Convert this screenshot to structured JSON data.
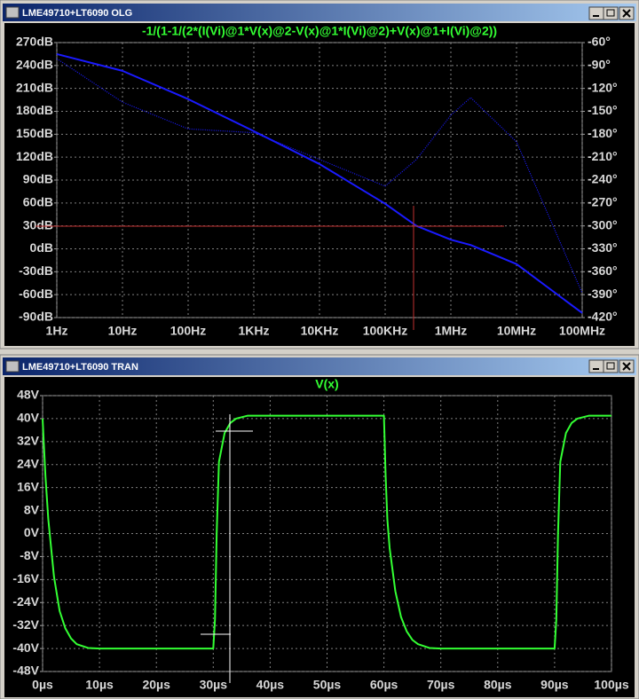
{
  "windows": [
    {
      "title": "LME49710+LT6090 OLG"
    },
    {
      "title": "LME49710+LT6090 TRAN"
    }
  ],
  "chart_data": [
    {
      "type": "line",
      "title": "-1/(1-1/(2*(I(Vi)@1*V(x)@2-V(x)@1*I(Vi)@2)+V(x)@1+I(Vi)@2))",
      "xscale": "log",
      "grid": true,
      "x": [
        1,
        10,
        100,
        1000,
        10000,
        100000,
        300000,
        1000000,
        2000000,
        10000000,
        100000000
      ],
      "series": [
        {
          "color": "#1a1aff",
          "style": "solid",
          "values": [
            255,
            233,
            196,
            154,
            111,
            59,
            30,
            12,
            5,
            -20,
            -84
          ]
        },
        {
          "color": "#1a1aff",
          "style": "dotted",
          "axis": "y2",
          "values": [
            -81,
            -138,
            -173,
            -178,
            -213,
            -248,
            -213,
            -155,
            -132,
            -190,
            -388
          ]
        }
      ],
      "xlim": [
        1,
        100000000
      ],
      "xticks": [
        {
          "value": 1,
          "label": "1Hz"
        },
        {
          "value": 10,
          "label": "10Hz"
        },
        {
          "value": 100,
          "label": "100Hz"
        },
        {
          "value": 1000,
          "label": "1KHz"
        },
        {
          "value": 10000,
          "label": "10KHz"
        },
        {
          "value": 100000,
          "label": "100KHz"
        },
        {
          "value": 1000000,
          "label": "1MHz"
        },
        {
          "value": 10000000,
          "label": "10MHz"
        },
        {
          "value": 100000000,
          "label": "100MHz"
        }
      ],
      "ylim": [
        -90,
        270
      ],
      "yticks": [
        {
          "value": 270,
          "label": "270dB"
        },
        {
          "value": 240,
          "label": "240dB"
        },
        {
          "value": 210,
          "label": "210dB"
        },
        {
          "value": 180,
          "label": "180dB"
        },
        {
          "value": 150,
          "label": "150dB"
        },
        {
          "value": 120,
          "label": "120dB"
        },
        {
          "value": 90,
          "label": "90dB"
        },
        {
          "value": 60,
          "label": "60dB"
        },
        {
          "value": 30,
          "label": "30dB"
        },
        {
          "value": 0,
          "label": "0dB"
        },
        {
          "value": -30,
          "label": "-30dB"
        },
        {
          "value": -60,
          "label": "-60dB"
        },
        {
          "value": -90,
          "label": "-90dB"
        }
      ],
      "y2lim": [
        -420,
        -60
      ],
      "y2ticks": [
        {
          "value": -60,
          "label": "-60°"
        },
        {
          "value": -90,
          "label": "-90°"
        },
        {
          "value": -120,
          "label": "-120°"
        },
        {
          "value": -150,
          "label": "-150°"
        },
        {
          "value": -180,
          "label": "-180°"
        },
        {
          "value": -210,
          "label": "-210°"
        },
        {
          "value": -240,
          "label": "-240°"
        },
        {
          "value": -270,
          "label": "-270°"
        },
        {
          "value": -300,
          "label": "-300°"
        },
        {
          "value": -330,
          "label": "-330°"
        },
        {
          "value": -360,
          "label": "-360°"
        },
        {
          "value": -390,
          "label": "-390°"
        },
        {
          "value": -420,
          "label": "-420°"
        }
      ]
    },
    {
      "type": "line",
      "xscale": "linear",
      "grid": true,
      "x": [
        0,
        0.5,
        1,
        2,
        3,
        4,
        5,
        6,
        8,
        10,
        30,
        30.3,
        30.6,
        31,
        32,
        33,
        34,
        36,
        60,
        60.3,
        60.6,
        61,
        62,
        63,
        64,
        65,
        66,
        68,
        70,
        90,
        90.3,
        90.6,
        91,
        92,
        93,
        94,
        96,
        100
      ],
      "series": [
        {
          "name": "V(x)",
          "color": "#33ff33",
          "style": "solid",
          "values": [
            40,
            20,
            5,
            -15,
            -27,
            -33,
            -36.5,
            -38.5,
            -39.8,
            -40,
            -40,
            -30,
            0,
            25,
            35,
            38.5,
            40,
            41,
            41,
            20,
            5,
            -5,
            -20,
            -29,
            -34,
            -37,
            -38.5,
            -39.8,
            -40,
            -40,
            -30,
            0,
            25,
            35,
            38.5,
            40,
            41,
            41
          ]
        }
      ],
      "xlim": [
        0,
        100
      ],
      "xticks": [
        {
          "value": 0,
          "label": "0µs"
        },
        {
          "value": 10,
          "label": "10µs"
        },
        {
          "value": 20,
          "label": "20µs"
        },
        {
          "value": 30,
          "label": "30µs"
        },
        {
          "value": 40,
          "label": "40µs"
        },
        {
          "value": 50,
          "label": "50µs"
        },
        {
          "value": 60,
          "label": "60µs"
        },
        {
          "value": 70,
          "label": "70µs"
        },
        {
          "value": 80,
          "label": "80µs"
        },
        {
          "value": 90,
          "label": "90µs"
        },
        {
          "value": 100,
          "label": "100µs"
        }
      ],
      "ylim": [
        -48,
        48
      ],
      "yticks": [
        {
          "value": 48,
          "label": "48V"
        },
        {
          "value": 40,
          "label": "40V"
        },
        {
          "value": 32,
          "label": "32V"
        },
        {
          "value": 24,
          "label": "24V"
        },
        {
          "value": 16,
          "label": "16V"
        },
        {
          "value": 8,
          "label": "8V"
        },
        {
          "value": 0,
          "label": "0V"
        },
        {
          "value": -8,
          "label": "-8V"
        },
        {
          "value": -16,
          "label": "-16V"
        },
        {
          "value": -24,
          "label": "-24V"
        },
        {
          "value": -32,
          "label": "-32V"
        },
        {
          "value": -40,
          "label": "-40V"
        },
        {
          "value": -48,
          "label": "-48V"
        }
      ]
    }
  ]
}
